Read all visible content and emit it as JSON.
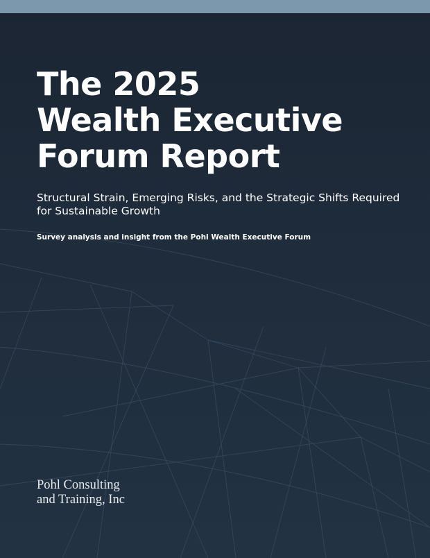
{
  "cover": {
    "title_lines": [
      "The 2025",
      "Wealth Executive",
      "Forum Report"
    ],
    "subtitle_lines": [
      "Structural Strain, Emerging Risks, and the Strategic Shifts Required",
      "for Sustainable Growth"
    ],
    "tagline": "Survey analysis and insight from the Pohl Wealth Executive Forum",
    "company_lines": [
      "Pohl Consulting",
      "and Training, Inc"
    ]
  },
  "colors": {
    "background": "#1c2836",
    "top_bar": "#7b98ad",
    "mesh_lines": "#3a4d61",
    "text": "#ffffff"
  }
}
